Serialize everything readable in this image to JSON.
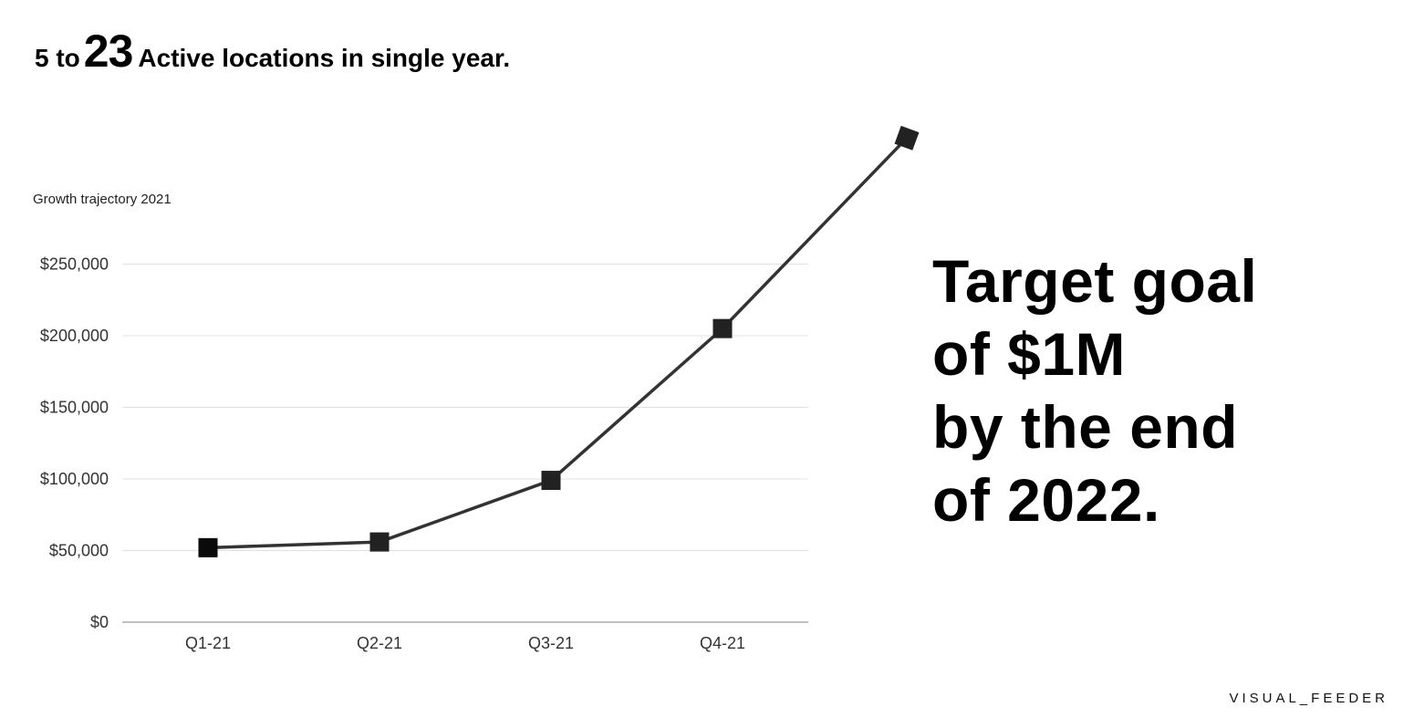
{
  "headline": {
    "prefix": "5 to",
    "highlight": "23",
    "suffix": "Active locations in single year."
  },
  "chart_data": {
    "type": "line",
    "title": "Growth trajectory 2021",
    "categories": [
      "Q1-21",
      "Q2-21",
      "Q3-21",
      "Q4-21",
      ""
    ],
    "series": [
      {
        "values": [
          52000,
          56000,
          99000,
          205000,
          338000
        ]
      }
    ],
    "y_ticks": [
      0,
      50000,
      100000,
      150000,
      200000,
      250000
    ],
    "y_tick_labels": [
      "$0",
      "$50,000",
      "$100,000",
      "$150,000",
      "$200,000",
      "$250,000"
    ],
    "ylim": [
      0,
      250000
    ],
    "grid": true,
    "marker": "square",
    "line_color": "#333333",
    "marker_color": "#222222"
  },
  "goal": {
    "lines": [
      "Target goal",
      "of $1M",
      "by the end",
      "of 2022."
    ]
  },
  "brand": {
    "label": "VISUAL_FEEDER"
  }
}
